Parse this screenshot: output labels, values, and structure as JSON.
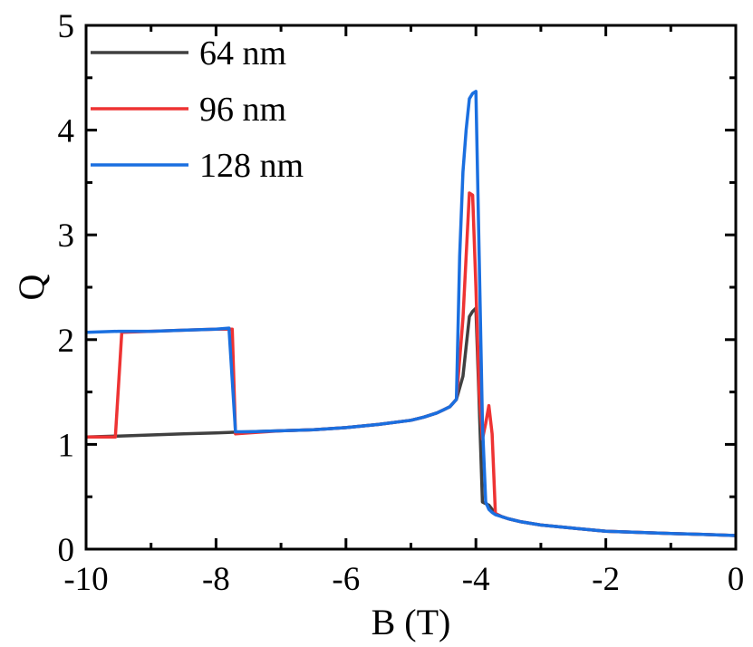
{
  "chart_data": {
    "type": "line",
    "title": "",
    "xlabel": "B (T)",
    "ylabel": "Q",
    "xlim": [
      -10,
      0
    ],
    "ylim": [
      0,
      5
    ],
    "xticks": [
      -10,
      -8,
      -6,
      -4,
      -2,
      0
    ],
    "xtick_labels": [
      "-10",
      "-8",
      "-6",
      "-4",
      "-2",
      "0"
    ],
    "yticks": [
      0,
      1,
      2,
      3,
      4,
      5
    ],
    "ytick_labels": [
      "0",
      "1",
      "2",
      "3",
      "4",
      "5"
    ],
    "grid": false,
    "legend_position": "top-left",
    "series": [
      {
        "name": "64 nm",
        "color": "#404040",
        "x": [
          -10,
          -9.5,
          -9,
          -8.5,
          -8,
          -7.5,
          -7,
          -6.5,
          -6,
          -5.5,
          -5,
          -4.8,
          -4.6,
          -4.5,
          -4.4,
          -4.3,
          -4.2,
          -4.1,
          -4.05,
          -4.0,
          -3.95,
          -3.9,
          -3.8,
          -3.75,
          -3.7,
          -3.6,
          -3.5,
          -3.3,
          -3,
          -2.5,
          -2,
          -1.5,
          -1,
          -0.5,
          0
        ],
        "y": [
          1.07,
          1.08,
          1.09,
          1.1,
          1.11,
          1.12,
          1.13,
          1.14,
          1.16,
          1.19,
          1.23,
          1.26,
          1.3,
          1.33,
          1.36,
          1.43,
          1.65,
          2.22,
          2.27,
          2.3,
          1.4,
          0.45,
          0.42,
          0.38,
          0.34,
          0.31,
          0.29,
          0.26,
          0.23,
          0.2,
          0.17,
          0.16,
          0.15,
          0.14,
          0.13
        ]
      },
      {
        "name": "96 nm",
        "color": "#ee3333",
        "x": [
          -10,
          -9.55,
          -9.45,
          -9.0,
          -8.5,
          -8.0,
          -7.75,
          -7.7,
          -7.5,
          -7,
          -6.5,
          -6,
          -5.5,
          -5,
          -4.8,
          -4.6,
          -4.5,
          -4.4,
          -4.3,
          -4.2,
          -4.1,
          -4.05,
          -4.0,
          -3.95,
          -3.9,
          -3.85,
          -3.8,
          -3.75,
          -3.7,
          -3.6,
          -3.5,
          -3.3,
          -3,
          -2.5,
          -2,
          -1.5,
          -1,
          -0.5,
          0
        ],
        "y": [
          1.07,
          1.07,
          2.07,
          2.08,
          2.09,
          2.1,
          2.1,
          1.1,
          1.11,
          1.13,
          1.14,
          1.16,
          1.19,
          1.23,
          1.26,
          1.3,
          1.33,
          1.36,
          1.43,
          2.2,
          3.4,
          3.38,
          2.5,
          1.5,
          1.05,
          1.2,
          1.37,
          1.1,
          0.34,
          0.31,
          0.29,
          0.26,
          0.23,
          0.2,
          0.17,
          0.16,
          0.15,
          0.14,
          0.13
        ]
      },
      {
        "name": "128 nm",
        "color": "#1a6fe0",
        "x": [
          -10,
          -9.5,
          -9,
          -8.5,
          -8,
          -7.8,
          -7.7,
          -7.5,
          -7,
          -6.5,
          -6,
          -5.5,
          -5,
          -4.8,
          -4.6,
          -4.5,
          -4.4,
          -4.3,
          -4.25,
          -4.2,
          -4.15,
          -4.1,
          -4.05,
          -4.0,
          -3.95,
          -3.9,
          -3.85,
          -3.8,
          -3.75,
          -3.7,
          -3.6,
          -3.5,
          -3.3,
          -3,
          -2.5,
          -2,
          -1.5,
          -1,
          -0.5,
          0
        ],
        "y": [
          2.07,
          2.08,
          2.08,
          2.09,
          2.1,
          2.11,
          1.12,
          1.12,
          1.13,
          1.14,
          1.16,
          1.19,
          1.23,
          1.26,
          1.3,
          1.33,
          1.36,
          1.43,
          2.8,
          3.6,
          4.0,
          4.3,
          4.35,
          4.37,
          2.8,
          1.2,
          0.45,
          0.38,
          0.35,
          0.33,
          0.31,
          0.29,
          0.26,
          0.23,
          0.2,
          0.17,
          0.16,
          0.15,
          0.14,
          0.13
        ]
      }
    ]
  }
}
